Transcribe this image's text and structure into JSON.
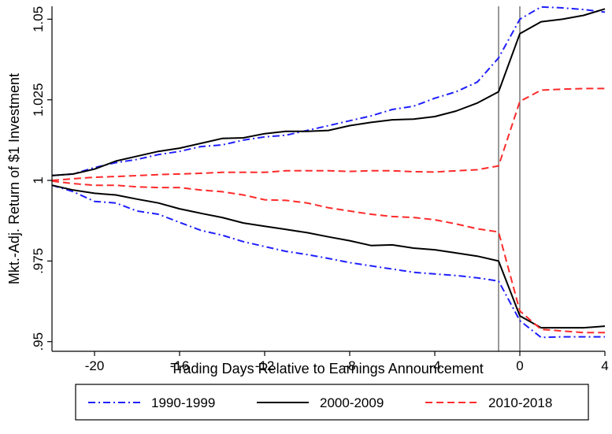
{
  "chart_data": {
    "type": "line",
    "xlabel": "Trading Days Relative to Earnings Announcement",
    "ylabel": "Mkt.-Adj. Return of $1 Investment",
    "xlim": [
      -22,
      4
    ],
    "ylim": [
      0.947,
      1.054
    ],
    "xticks": [
      -20,
      -16,
      -12,
      -8,
      -4,
      0,
      4
    ],
    "xtick_labels": [
      "-20",
      "-16",
      "-12",
      "-8",
      "-4",
      "0",
      "4"
    ],
    "yticks": [
      0.95,
      0.975,
      1.0,
      1.025,
      1.05
    ],
    "ytick_labels": [
      ".95",
      ".975",
      "1",
      "1.025",
      "1.05"
    ],
    "vlines": [
      -1,
      0
    ],
    "grid": false,
    "legend_position": "bottom",
    "x": [
      -22,
      -21,
      -20,
      -19,
      -18,
      -17,
      -16,
      -15,
      -14,
      -13,
      -12,
      -11,
      -10,
      -9,
      -8,
      -7,
      -6,
      -5,
      -4,
      -3,
      -2,
      -1,
      0,
      1,
      2,
      3,
      4
    ],
    "series": [
      {
        "name": "1990-1999",
        "color": "#1f1fff",
        "style": "dashdot",
        "group": "up",
        "values": [
          1.0015,
          1.002,
          1.004,
          1.0055,
          1.0065,
          1.008,
          1.009,
          1.0105,
          1.011,
          1.0125,
          1.0135,
          1.014,
          1.0155,
          1.017,
          1.0185,
          1.02,
          1.022,
          1.023,
          1.0255,
          1.0275,
          1.0305,
          1.038,
          1.05,
          1.0538,
          1.0535,
          1.053,
          1.0522
        ]
      },
      {
        "name": "1990-1999",
        "color": "#1f1fff",
        "style": "dashdot",
        "group": "down",
        "values": [
          0.9985,
          0.9965,
          0.9935,
          0.993,
          0.9905,
          0.9895,
          0.987,
          0.9845,
          0.983,
          0.981,
          0.9795,
          0.978,
          0.977,
          0.9758,
          0.9745,
          0.9735,
          0.9725,
          0.9715,
          0.971,
          0.9705,
          0.9698,
          0.9688,
          0.9565,
          0.9513,
          0.9515,
          0.9515,
          0.9515
        ]
      },
      {
        "name": "2000-2009",
        "color": "#000000",
        "style": "solid",
        "group": "up",
        "values": [
          1.0015,
          1.002,
          1.0035,
          1.006,
          1.0075,
          1.009,
          1.01,
          1.0115,
          1.013,
          1.0132,
          1.0145,
          1.0152,
          1.0152,
          1.0155,
          1.017,
          1.018,
          1.0188,
          1.019,
          1.0198,
          1.0215,
          1.024,
          1.0275,
          1.0455,
          1.0492,
          1.05,
          1.0512,
          1.0532
        ]
      },
      {
        "name": "2000-2009",
        "color": "#000000",
        "style": "solid",
        "group": "down",
        "values": [
          0.9985,
          0.997,
          0.996,
          0.9955,
          0.9942,
          0.993,
          0.9912,
          0.9898,
          0.9885,
          0.9868,
          0.9858,
          0.9848,
          0.9838,
          0.9825,
          0.9813,
          0.9798,
          0.98,
          0.979,
          0.9785,
          0.9775,
          0.9765,
          0.975,
          0.958,
          0.9543,
          0.9543,
          0.9543,
          0.9548
        ]
      },
      {
        "name": "2010-2018",
        "color": "#ff2a2a",
        "style": "dashed",
        "group": "up",
        "values": [
          1.0,
          1.0005,
          1.001,
          1.0012,
          1.0015,
          1.0018,
          1.002,
          1.0022,
          1.0025,
          1.0025,
          1.0025,
          1.003,
          1.003,
          1.003,
          1.0028,
          1.003,
          1.003,
          1.0027,
          1.0026,
          1.003,
          1.0033,
          1.0045,
          1.0245,
          1.028,
          1.0283,
          1.0285,
          1.0285
        ]
      },
      {
        "name": "2010-2018",
        "color": "#ff2a2a",
        "style": "dashed",
        "group": "down",
        "values": [
          0.9998,
          0.999,
          0.9985,
          0.9985,
          0.998,
          0.9978,
          0.9978,
          0.997,
          0.9965,
          0.9955,
          0.994,
          0.9938,
          0.993,
          0.9915,
          0.9905,
          0.9895,
          0.9888,
          0.9885,
          0.9878,
          0.9865,
          0.985,
          0.984,
          0.9595,
          0.9538,
          0.9533,
          0.9528,
          0.9528
        ]
      }
    ],
    "legend": [
      {
        "label": "1990-1999",
        "color": "#1f1fff",
        "style": "dashdot"
      },
      {
        "label": "2000-2009",
        "color": "#000000",
        "style": "solid"
      },
      {
        "label": "2010-2018",
        "color": "#ff2a2a",
        "style": "dashed"
      }
    ]
  }
}
